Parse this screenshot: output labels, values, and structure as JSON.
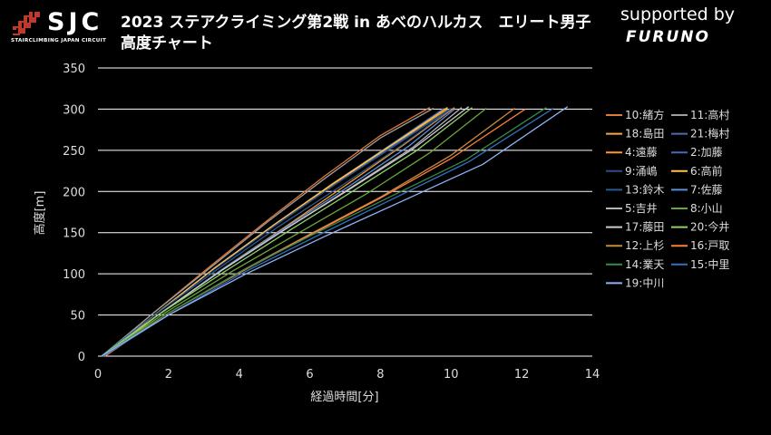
{
  "header": {
    "logo_text": "SJC",
    "logo_subtitle": "STAIRCLIMBING JAPAN CIRCUIT",
    "title_line1": "2023 ステアクライミング第2戦 in あべのハルカス　エリート男子",
    "title_line2": "高度チャート",
    "sponsor_label": "supported by",
    "sponsor_brand": "FURUNO"
  },
  "colors": {
    "background": "#000000",
    "grid": "#ffffff",
    "axis_text": "#dddddd",
    "logo_accent": "#c0392b"
  },
  "chart_data": {
    "type": "line",
    "title": "",
    "xlabel": "経過時間[分]",
    "ylabel": "高度[m]",
    "xlim": [
      0,
      14
    ],
    "ylim": [
      0,
      350
    ],
    "xticks": [
      0,
      2,
      4,
      6,
      8,
      10,
      12,
      14
    ],
    "yticks": [
      0,
      50,
      100,
      150,
      200,
      250,
      300,
      350
    ],
    "grid": "horizontal",
    "legend_position": "right",
    "series": [
      {
        "name": "10:緒方",
        "color": "#e07b39",
        "x": [
          0.15,
          1.5,
          3.2,
          4.8,
          6.4,
          8.0,
          9.4
        ],
        "y": [
          0,
          50,
          110,
          165,
          218,
          268,
          302
        ]
      },
      {
        "name": "11:高村",
        "color": "#9e9e9e",
        "x": [
          0.1,
          1.5,
          3.2,
          4.8,
          6.4,
          8.0,
          9.5
        ],
        "y": [
          0,
          50,
          108,
          163,
          215,
          265,
          301
        ]
      },
      {
        "name": "18:島田",
        "color": "#f5a742",
        "x": [
          0.15,
          1.6,
          3.3,
          5.0,
          6.7,
          8.4,
          9.9
        ],
        "y": [
          0,
          50,
          107,
          160,
          210,
          258,
          300
        ]
      },
      {
        "name": "21:梅村",
        "color": "#4a6fb0",
        "x": [
          0.1,
          1.6,
          3.3,
          5.0,
          6.7,
          8.4,
          10.0
        ],
        "y": [
          0,
          50,
          106,
          158,
          208,
          257,
          300
        ]
      },
      {
        "name": "4:遠藤",
        "color": "#ff9a2e",
        "x": [
          0.2,
          1.7,
          3.5,
          5.3,
          7.0,
          8.7,
          10.1
        ],
        "y": [
          0,
          50,
          105,
          157,
          207,
          258,
          302
        ]
      },
      {
        "name": "2:加藤",
        "color": "#3f6fb5",
        "x": [
          0.1,
          1.6,
          3.3,
          5.0,
          6.7,
          8.4,
          9.8
        ],
        "y": [
          0,
          50,
          107,
          160,
          211,
          260,
          301
        ]
      },
      {
        "name": "9:涌嶋",
        "color": "#2c4f86",
        "x": [
          0.1,
          1.6,
          3.3,
          5.0,
          6.7,
          8.5,
          10.0
        ],
        "y": [
          0,
          50,
          106,
          158,
          208,
          258,
          301
        ]
      },
      {
        "name": "6:高前",
        "color": "#ffc44d",
        "x": [
          0.15,
          1.6,
          3.3,
          5.0,
          6.7,
          8.4,
          9.9
        ],
        "y": [
          0,
          50,
          107,
          160,
          211,
          259,
          302
        ]
      },
      {
        "name": "13:鈴木",
        "color": "#2a5a8f",
        "x": [
          0.1,
          1.6,
          3.4,
          5.1,
          6.9,
          8.6,
          10.0
        ],
        "y": [
          0,
          50,
          106,
          157,
          207,
          256,
          300
        ]
      },
      {
        "name": "7:佐藤",
        "color": "#5b8fd6",
        "x": [
          0.1,
          1.7,
          3.5,
          5.3,
          7.1,
          8.8,
          10.1
        ],
        "y": [
          0,
          50,
          105,
          156,
          206,
          255,
          300
        ]
      },
      {
        "name": "5:吉井",
        "color": "#b5b5b5",
        "x": [
          0.1,
          1.7,
          3.5,
          5.3,
          7.1,
          8.9,
          10.3
        ],
        "y": [
          0,
          50,
          104,
          154,
          203,
          253,
          302
        ]
      },
      {
        "name": "8:小山",
        "color": "#6ca63a",
        "x": [
          0.15,
          1.8,
          3.8,
          5.7,
          7.6,
          9.4,
          11.0
        ],
        "y": [
          0,
          50,
          103,
          150,
          197,
          247,
          301
        ]
      },
      {
        "name": "17:藤田",
        "color": "#cccccc",
        "x": [
          0.1,
          1.7,
          3.5,
          5.3,
          7.1,
          8.9,
          10.5
        ],
        "y": [
          0,
          50,
          104,
          154,
          202,
          251,
          303
        ]
      },
      {
        "name": "20:今井",
        "color": "#8fd16a",
        "x": [
          0.1,
          1.7,
          3.6,
          5.4,
          7.2,
          9.0,
          10.6
        ],
        "y": [
          0,
          50,
          103,
          152,
          200,
          249,
          302
        ]
      },
      {
        "name": "12:上杉",
        "color": "#c98a3f",
        "x": [
          0.2,
          1.9,
          4.0,
          6.0,
          8.0,
          10.0,
          11.8
        ],
        "y": [
          0,
          50,
          102,
          148,
          193,
          244,
          301
        ]
      },
      {
        "name": "16:戸取",
        "color": "#ff7f3a",
        "x": [
          0.2,
          1.9,
          4.0,
          6.0,
          8.0,
          10.0,
          12.1
        ],
        "y": [
          0,
          50,
          101,
          147,
          192,
          240,
          300
        ]
      },
      {
        "name": "14:業天",
        "color": "#3a8a4a",
        "x": [
          0.1,
          1.9,
          4.0,
          6.1,
          8.2,
          10.4,
          12.7
        ],
        "y": [
          0,
          50,
          102,
          148,
          192,
          238,
          302
        ]
      },
      {
        "name": "15:中里",
        "color": "#2f72c2",
        "x": [
          0.15,
          2.0,
          4.1,
          6.2,
          8.3,
          10.5,
          12.9
        ],
        "y": [
          0,
          50,
          101,
          146,
          190,
          236,
          301
        ]
      },
      {
        "name": "19:中川",
        "color": "#8fb3f5",
        "x": [
          0.1,
          2.0,
          4.2,
          6.4,
          8.6,
          10.9,
          13.3
        ],
        "y": [
          0,
          50,
          100,
          145,
          188,
          233,
          303
        ]
      }
    ]
  }
}
